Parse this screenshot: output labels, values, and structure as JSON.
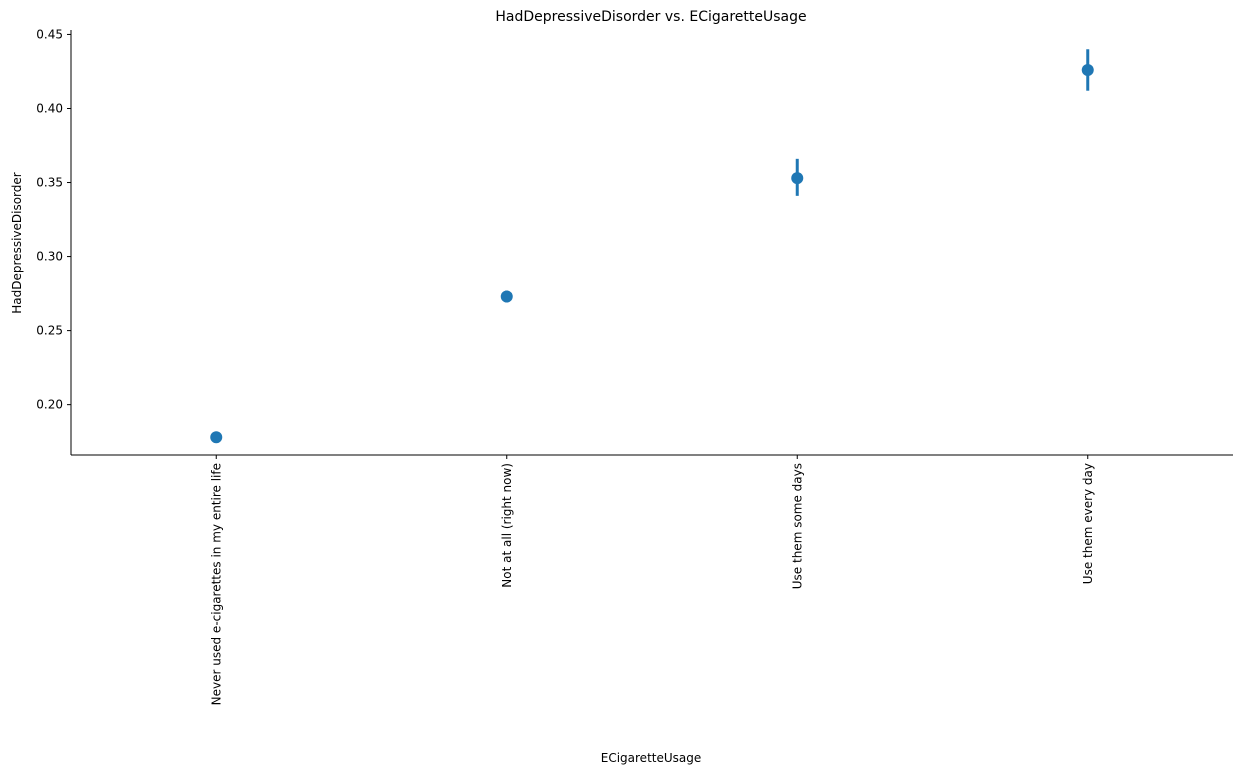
{
  "chart_data": {
    "type": "point",
    "title": "HadDepressiveDisorder vs. ECigaretteUsage",
    "xlabel": "ECigaretteUsage",
    "ylabel": "HadDepressiveDisorder",
    "categories": [
      "Never used e-cigarettes in my entire life",
      "Not at all (right now)",
      "Use them some days",
      "Use them every day"
    ],
    "values": [
      0.178,
      0.273,
      0.353,
      0.426
    ],
    "error_low": [
      0.176,
      0.269,
      0.341,
      0.412
    ],
    "error_high": [
      0.18,
      0.277,
      0.366,
      0.44
    ],
    "ylim": [
      0.166,
      0.453
    ],
    "yticks": [
      0.2,
      0.25,
      0.3,
      0.35,
      0.4,
      0.45
    ],
    "ytick_labels": [
      "0.20",
      "0.25",
      "0.30",
      "0.35",
      "0.40",
      "0.45"
    ],
    "grid": false,
    "color": "#1f77b4"
  }
}
